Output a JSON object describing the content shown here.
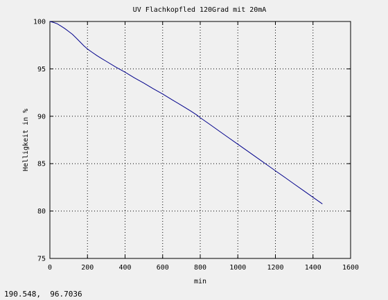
{
  "chart_data": {
    "type": "line",
    "title": "UV Flachkopfled 120Grad mit 20mA",
    "xlabel": "min",
    "ylabel": "Helligkeit in %",
    "xlim": [
      0,
      1600
    ],
    "ylim": [
      75,
      100
    ],
    "xticks": [
      0,
      200,
      400,
      600,
      800,
      1000,
      1200,
      1400,
      1600
    ],
    "yticks": [
      75,
      80,
      85,
      90,
      95,
      100
    ],
    "grid": true,
    "series": [
      {
        "color": "#00008b",
        "x": [
          0,
          20,
          40,
          60,
          80,
          100,
          120,
          140,
          160,
          180,
          200,
          225,
          250,
          275,
          300,
          350,
          400,
          450,
          500,
          550,
          600,
          650,
          700,
          750,
          780,
          800,
          850,
          900,
          950,
          1000,
          1050,
          1100,
          1150,
          1200,
          1250,
          1300,
          1350,
          1400,
          1450
        ],
        "y": [
          100,
          99.9,
          99.75,
          99.5,
          99.25,
          98.95,
          98.65,
          98.25,
          97.85,
          97.45,
          97.1,
          96.75,
          96.4,
          96.1,
          95.8,
          95.2,
          94.65,
          94.05,
          93.5,
          92.9,
          92.35,
          91.75,
          91.15,
          90.55,
          90.15,
          89.85,
          89.15,
          88.45,
          87.75,
          87.05,
          86.35,
          85.65,
          84.95,
          84.25,
          83.55,
          82.85,
          82.15,
          81.45,
          80.75
        ]
      }
    ]
  },
  "cursor_readout": "190.548,  96.7036"
}
